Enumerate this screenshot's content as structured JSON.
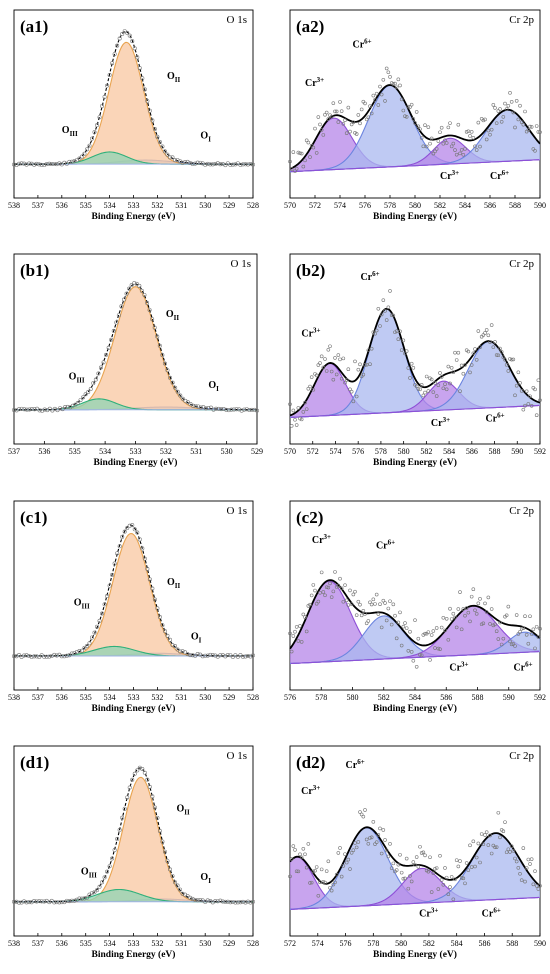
{
  "figure": {
    "xlabel": "Binding Energy (eV)",
    "colors": {
      "o_ii": "#f8c7a0",
      "o_ii_line": "#e8a34f",
      "o_iii": "#8fd3b4",
      "o_iii_line": "#2fb07a",
      "o_i": "#b8c8ee",
      "o_i_line": "#6f8fdc",
      "cr3": "#b585e8",
      "cr3_line": "#8e4fd6",
      "cr6": "#a9b8ef",
      "cr6_line": "#6b84df",
      "envelope": "#000000",
      "data_points": "#777777"
    }
  },
  "chart_data": [
    {
      "id": "a1",
      "label": "(a1)",
      "tag": "O 1s",
      "type": "line",
      "xlim": [
        538,
        528
      ],
      "xticks": [
        528,
        529,
        530,
        531,
        532,
        533,
        534,
        535,
        536,
        537,
        538
      ],
      "peaks": [
        {
          "name": "O_I",
          "center": 532.5,
          "fwhm": 2.6,
          "height": 0.03,
          "color": "o_i"
        },
        {
          "name": "O_II",
          "center": 533.3,
          "fwhm": 1.7,
          "height": 0.9,
          "color": "o_ii"
        },
        {
          "name": "O_III",
          "center": 534.0,
          "fwhm": 1.7,
          "height": 0.09,
          "color": "o_iii"
        }
      ],
      "annotations": [
        {
          "main": "O",
          "sub": "I",
          "x": 530.2,
          "y": 0.19
        },
        {
          "main": "O",
          "sub": "II",
          "x": 531.6,
          "y": 0.63
        },
        {
          "main": "O",
          "sub": "III",
          "x": 536.0,
          "y": 0.23
        }
      ]
    },
    {
      "id": "a2",
      "label": "(a2)",
      "tag": "Cr 2p",
      "type": "line",
      "xlim": [
        570,
        590
      ],
      "xticks": [
        570,
        572,
        574,
        576,
        578,
        580,
        582,
        584,
        586,
        588,
        590
      ],
      "peaks": [
        {
          "name": "Cr3+",
          "center": 573.5,
          "fwhm": 3.4,
          "height": 0.36,
          "color": "cr3"
        },
        {
          "name": "Cr6+",
          "center": 578.0,
          "fwhm": 4.0,
          "height": 0.57,
          "color": "cr6"
        },
        {
          "name": "Cr3+",
          "center": 582.8,
          "fwhm": 3.0,
          "height": 0.18,
          "color": "cr3"
        },
        {
          "name": "Cr6+",
          "center": 587.4,
          "fwhm": 4.0,
          "height": 0.36,
          "color": "cr6"
        }
      ],
      "annotations": [
        {
          "main": "Cr",
          "sup": "3+",
          "x": 571.2,
          "y": 0.6
        },
        {
          "main": "Cr",
          "sup": "6+",
          "x": 575.0,
          "y": 0.87
        },
        {
          "main": "Cr",
          "sup": "3+",
          "x": 582.0,
          "y": -0.05
        },
        {
          "main": "Cr",
          "sup": "6+",
          "x": 586.0,
          "y": -0.05
        }
      ]
    },
    {
      "id": "b1",
      "label": "(b1)",
      "tag": "O 1s",
      "type": "line",
      "xlim": [
        537,
        529
      ],
      "xticks": [
        529,
        530,
        531,
        532,
        533,
        534,
        535,
        536,
        537
      ],
      "peaks": [
        {
          "name": "O_I",
          "center": 532.0,
          "fwhm": 2.5,
          "height": 0.02,
          "color": "o_i"
        },
        {
          "name": "O_II",
          "center": 533.0,
          "fwhm": 1.6,
          "height": 0.9,
          "color": "o_ii"
        },
        {
          "name": "O_III",
          "center": 534.2,
          "fwhm": 1.3,
          "height": 0.08,
          "color": "o_iii"
        }
      ],
      "annotations": [
        {
          "main": "O",
          "sub": "I",
          "x": 530.6,
          "y": 0.16
        },
        {
          "main": "O",
          "sub": "II",
          "x": 532.0,
          "y": 0.68
        },
        {
          "main": "O",
          "sub": "III",
          "x": 535.2,
          "y": 0.22
        }
      ]
    },
    {
      "id": "b2",
      "label": "(b2)",
      "tag": "Cr 2p",
      "type": "line",
      "xlim": [
        570,
        592
      ],
      "xticks": [
        570,
        572,
        574,
        576,
        578,
        580,
        582,
        584,
        586,
        588,
        590,
        592
      ],
      "peaks": [
        {
          "name": "Cr3+",
          "center": 573.5,
          "fwhm": 3.2,
          "height": 0.36,
          "color": "cr3"
        },
        {
          "name": "Cr6+",
          "center": 578.5,
          "fwhm": 3.6,
          "height": 0.72,
          "color": "cr6"
        },
        {
          "name": "Cr3+",
          "center": 583.5,
          "fwhm": 3.2,
          "height": 0.2,
          "color": "cr3"
        },
        {
          "name": "Cr6+",
          "center": 587.5,
          "fwhm": 4.2,
          "height": 0.46,
          "color": "cr6"
        }
      ],
      "annotations": [
        {
          "main": "Cr",
          "sup": "3+",
          "x": 571.0,
          "y": 0.56
        },
        {
          "main": "Cr",
          "sup": "6+",
          "x": 576.2,
          "y": 0.95
        },
        {
          "main": "Cr",
          "sup": "3+",
          "x": 582.4,
          "y": -0.06
        },
        {
          "main": "Cr",
          "sup": "6+",
          "x": 587.2,
          "y": -0.03
        }
      ]
    },
    {
      "id": "c1",
      "label": "(c1)",
      "tag": "O 1s",
      "type": "line",
      "xlim": [
        538,
        528
      ],
      "xticks": [
        528,
        529,
        530,
        531,
        532,
        533,
        534,
        535,
        536,
        537,
        538
      ],
      "peaks": [
        {
          "name": "O_I",
          "center": 532.0,
          "fwhm": 2.5,
          "height": 0.02,
          "color": "o_i"
        },
        {
          "name": "O_II",
          "center": 533.1,
          "fwhm": 1.8,
          "height": 0.9,
          "color": "o_ii"
        },
        {
          "name": "O_III",
          "center": 533.8,
          "fwhm": 2.0,
          "height": 0.07,
          "color": "o_iii"
        }
      ],
      "annotations": [
        {
          "main": "O",
          "sub": "I",
          "x": 530.6,
          "y": 0.12
        },
        {
          "main": "O",
          "sub": "II",
          "x": 531.6,
          "y": 0.52
        },
        {
          "main": "O",
          "sub": "III",
          "x": 535.5,
          "y": 0.37
        }
      ]
    },
    {
      "id": "c2",
      "label": "(c2)",
      "tag": "Cr 2p",
      "type": "line",
      "xlim": [
        576,
        592
      ],
      "xticks": [
        576,
        578,
        580,
        582,
        584,
        586,
        588,
        590,
        592
      ],
      "peaks": [
        {
          "name": "Cr3+",
          "center": 578.5,
          "fwhm": 3.2,
          "height": 0.56,
          "color": "cr3"
        },
        {
          "name": "Cr6+",
          "center": 582.0,
          "fwhm": 3.0,
          "height": 0.3,
          "color": "cr6"
        },
        {
          "name": "Cr3+",
          "center": 587.7,
          "fwhm": 3.6,
          "height": 0.34,
          "color": "cr3"
        },
        {
          "name": "Cr6+",
          "center": 591.0,
          "fwhm": 2.4,
          "height": 0.14,
          "color": "cr6"
        }
      ],
      "annotations": [
        {
          "main": "Cr",
          "sup": "3+",
          "x": 577.4,
          "y": 0.84
        },
        {
          "main": "Cr",
          "sup": "6+",
          "x": 581.5,
          "y": 0.8
        },
        {
          "main": "Cr",
          "sup": "3+",
          "x": 586.2,
          "y": -0.05
        },
        {
          "main": "Cr",
          "sup": "6+",
          "x": 590.3,
          "y": -0.05
        }
      ]
    },
    {
      "id": "d1",
      "label": "(d1)",
      "tag": "O 1s",
      "type": "line",
      "xlim": [
        538,
        528
      ],
      "xticks": [
        528,
        529,
        530,
        531,
        532,
        533,
        534,
        535,
        536,
        537,
        538
      ],
      "peaks": [
        {
          "name": "O_I",
          "center": 531.8,
          "fwhm": 2.5,
          "height": 0.02,
          "color": "o_i"
        },
        {
          "name": "O_II",
          "center": 532.7,
          "fwhm": 1.7,
          "height": 0.91,
          "color": "o_ii"
        },
        {
          "name": "O_III",
          "center": 533.6,
          "fwhm": 2.1,
          "height": 0.09,
          "color": "o_iii"
        }
      ],
      "annotations": [
        {
          "main": "O",
          "sub": "I",
          "x": 530.2,
          "y": 0.16
        },
        {
          "main": "O",
          "sub": "II",
          "x": 531.2,
          "y": 0.66
        },
        {
          "main": "O",
          "sub": "III",
          "x": 535.2,
          "y": 0.2
        }
      ]
    },
    {
      "id": "d2",
      "label": "(d2)",
      "tag": "Cr 2p",
      "type": "line",
      "xlim": [
        572,
        590
      ],
      "xticks": [
        572,
        574,
        576,
        578,
        580,
        582,
        584,
        586,
        588,
        590
      ],
      "peaks": [
        {
          "name": "Cr3+",
          "center": 572.5,
          "fwhm": 2.8,
          "height": 0.36,
          "color": "cr3"
        },
        {
          "name": "Cr6+",
          "center": 577.5,
          "fwhm": 3.6,
          "height": 0.54,
          "color": "cr6"
        },
        {
          "name": "Cr3+",
          "center": 581.5,
          "fwhm": 3.2,
          "height": 0.24,
          "color": "cr3"
        },
        {
          "name": "Cr6+",
          "center": 586.8,
          "fwhm": 4.0,
          "height": 0.46,
          "color": "cr6"
        }
      ],
      "annotations": [
        {
          "main": "Cr",
          "sup": "3+",
          "x": 572.8,
          "y": 0.8
        },
        {
          "main": "Cr",
          "sup": "6+",
          "x": 576.0,
          "y": 0.98
        },
        {
          "main": "Cr",
          "sup": "3+",
          "x": 581.3,
          "y": -0.05
        },
        {
          "main": "Cr",
          "sup": "6+",
          "x": 585.8,
          "y": -0.05
        }
      ]
    }
  ]
}
